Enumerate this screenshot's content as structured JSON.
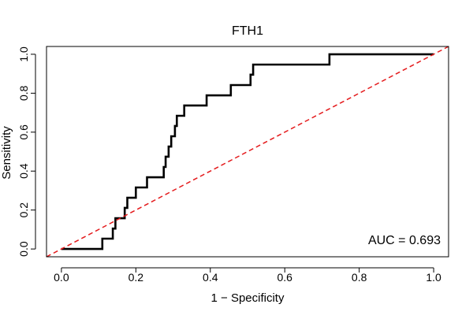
{
  "chart_data": {
    "type": "line",
    "title": "FTH1",
    "xlabel": "1 − Specificity",
    "ylabel": "Sensitivity",
    "xlim": [
      -0.04,
      1.04
    ],
    "ylim": [
      -0.04,
      1.04
    ],
    "x_ticks": [
      "0.0",
      "0.2",
      "0.4",
      "0.6",
      "0.8",
      "1.0"
    ],
    "y_ticks": [
      "0.0",
      "0.2",
      "0.4",
      "0.6",
      "0.8",
      "1.0"
    ],
    "annotation": "AUC = 0.693",
    "grid": false,
    "series": [
      {
        "style": "solid",
        "color": "#000000",
        "points": [
          [
            0.0,
            0.0
          ],
          [
            0.11,
            0.0
          ],
          [
            0.11,
            0.053
          ],
          [
            0.138,
            0.053
          ],
          [
            0.138,
            0.105
          ],
          [
            0.145,
            0.105
          ],
          [
            0.145,
            0.158
          ],
          [
            0.17,
            0.158
          ],
          [
            0.17,
            0.211
          ],
          [
            0.177,
            0.211
          ],
          [
            0.177,
            0.263
          ],
          [
            0.2,
            0.263
          ],
          [
            0.2,
            0.316
          ],
          [
            0.23,
            0.316
          ],
          [
            0.23,
            0.368
          ],
          [
            0.275,
            0.368
          ],
          [
            0.275,
            0.421
          ],
          [
            0.28,
            0.421
          ],
          [
            0.28,
            0.474
          ],
          [
            0.288,
            0.474
          ],
          [
            0.288,
            0.526
          ],
          [
            0.295,
            0.526
          ],
          [
            0.295,
            0.579
          ],
          [
            0.305,
            0.579
          ],
          [
            0.305,
            0.632
          ],
          [
            0.31,
            0.632
          ],
          [
            0.31,
            0.684
          ],
          [
            0.33,
            0.684
          ],
          [
            0.33,
            0.737
          ],
          [
            0.39,
            0.737
          ],
          [
            0.39,
            0.789
          ],
          [
            0.455,
            0.789
          ],
          [
            0.455,
            0.842
          ],
          [
            0.508,
            0.842
          ],
          [
            0.508,
            0.895
          ],
          [
            0.515,
            0.895
          ],
          [
            0.515,
            0.947
          ],
          [
            0.72,
            0.947
          ],
          [
            0.72,
            1.0
          ],
          [
            1.0,
            1.0
          ]
        ]
      },
      {
        "style": "dashed",
        "color": "#e41a1c",
        "points": [
          [
            -0.04,
            -0.04
          ],
          [
            1.04,
            1.04
          ]
        ]
      }
    ]
  }
}
